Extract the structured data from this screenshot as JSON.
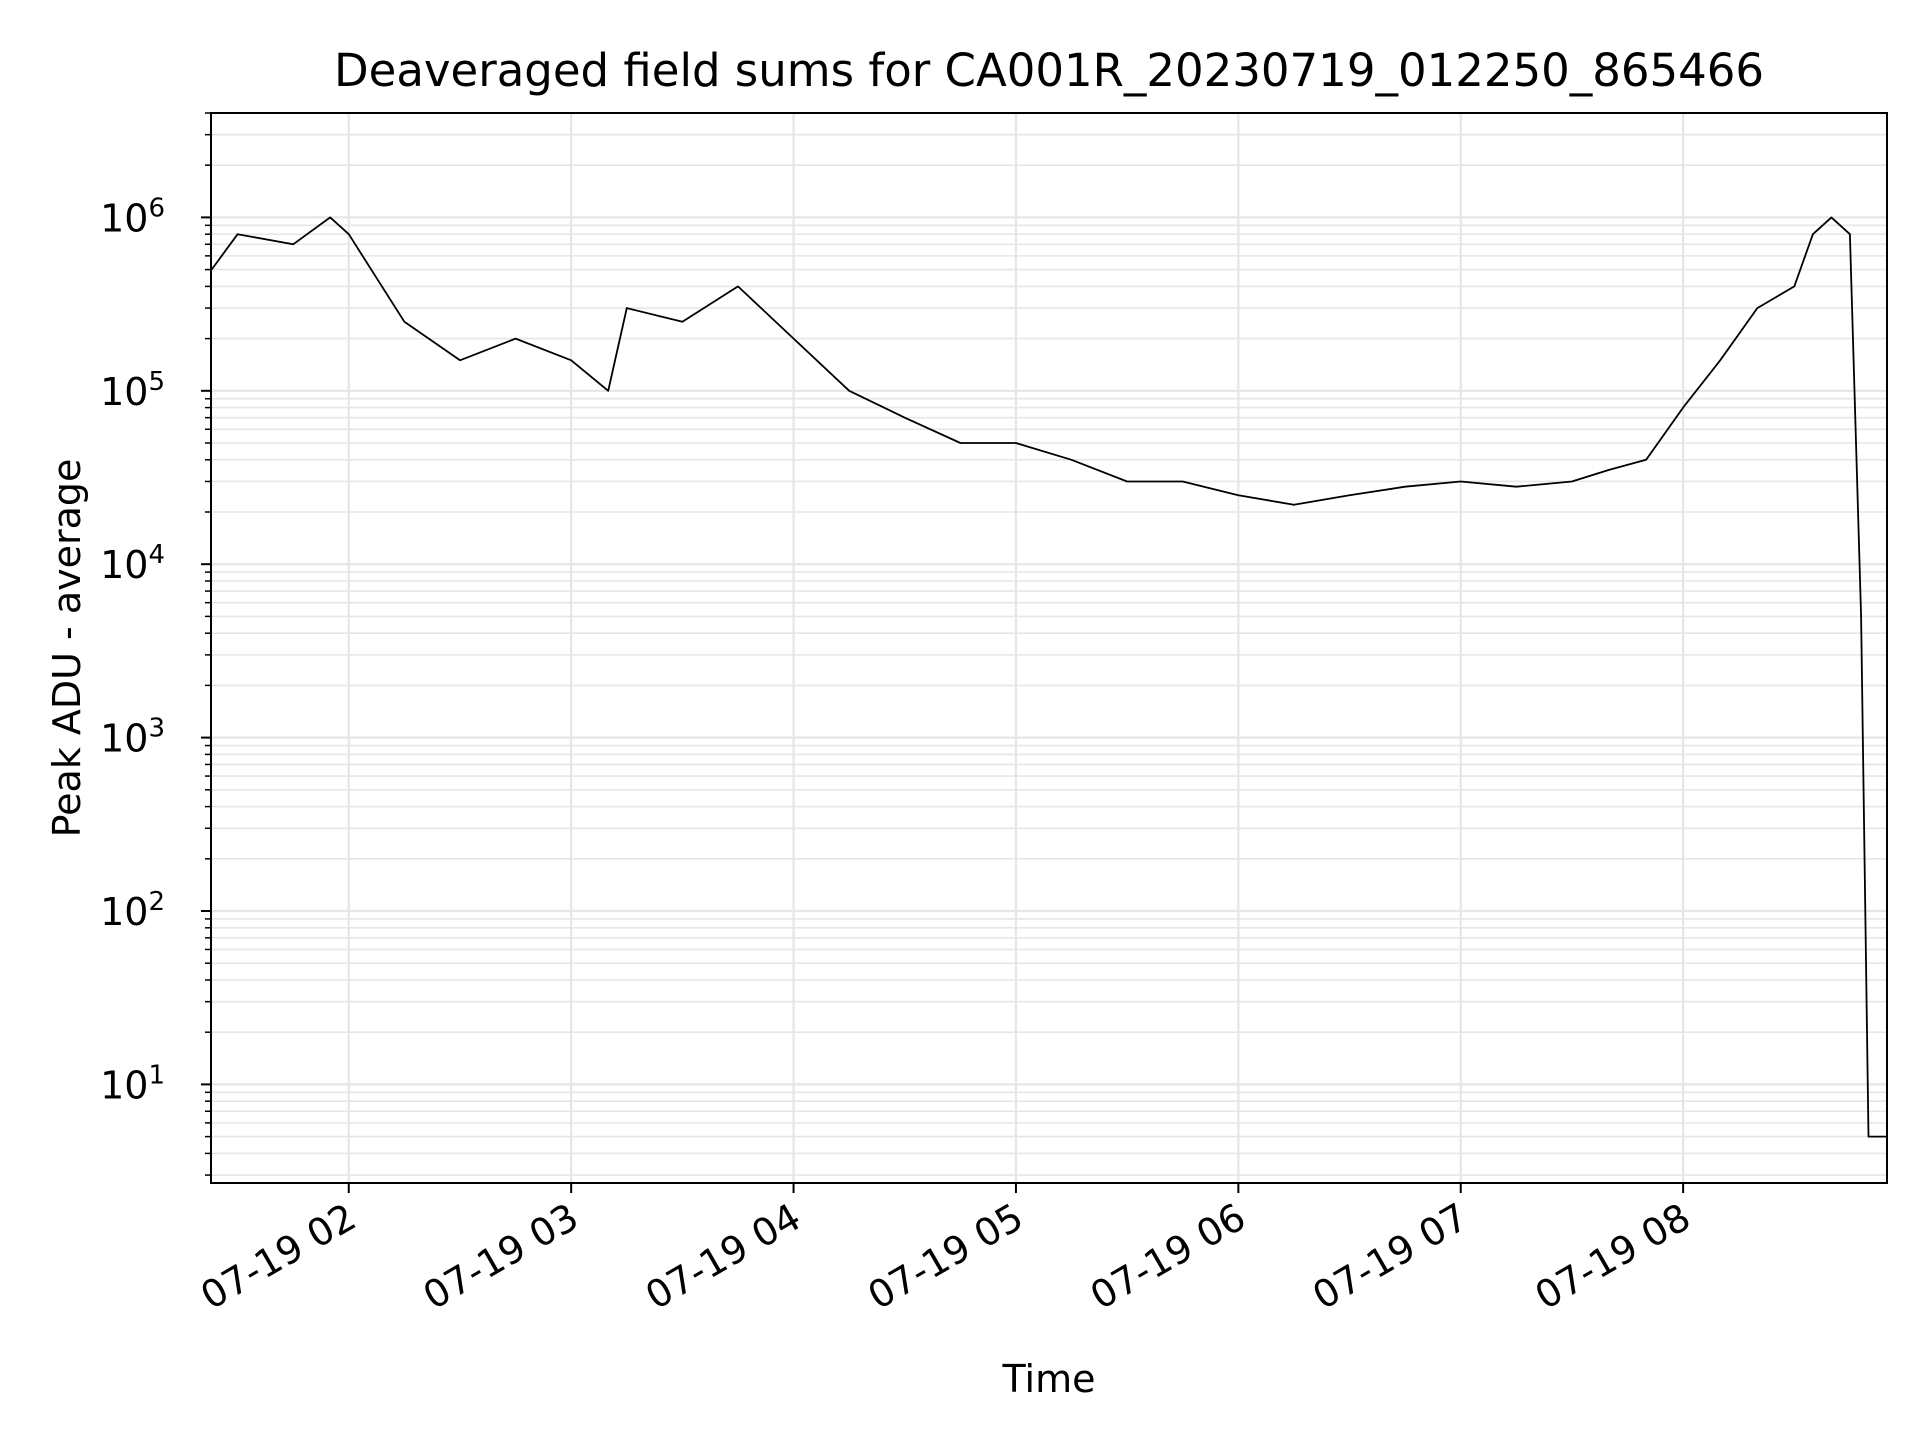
{
  "chart_data": {
    "type": "line",
    "title": "Deaveraged field sums for CA001R_20230719_012250_865466",
    "xlabel": "Time",
    "ylabel": "Peak ADU - average",
    "yscale": "log",
    "x_tick_labels": [
      "07-19 02",
      "07-19 03",
      "07-19 04",
      "07-19 05",
      "07-19 06",
      "07-19 07",
      "07-19 08"
    ],
    "y_tick_labels": [
      {
        "base": "10",
        "exp": "1"
      },
      {
        "base": "10",
        "exp": "2"
      },
      {
        "base": "10",
        "exp": "3"
      },
      {
        "base": "10",
        "exp": "4"
      },
      {
        "base": "10",
        "exp": "5"
      },
      {
        "base": "10",
        "exp": "6"
      }
    ],
    "xlim": [
      "2023-07-19 01:22:50",
      "2023-07-19 08:55"
    ],
    "ylim": [
      2.7,
      4000000
    ],
    "grid": true,
    "line_color": "#000000",
    "grid_color": "#e6e6e6",
    "series": [
      {
        "x": [
          "01:23",
          "01:30",
          "01:45",
          "01:55",
          "02:00",
          "02:15",
          "02:30",
          "02:45",
          "03:00",
          "03:10",
          "03:15",
          "03:30",
          "03:45",
          "04:00",
          "04:15",
          "04:30",
          "04:45",
          "05:00",
          "05:15",
          "05:30",
          "05:45",
          "06:00",
          "06:15",
          "06:30",
          "06:45",
          "07:00",
          "07:15",
          "07:30",
          "07:40",
          "07:50",
          "08:00",
          "08:10",
          "08:20",
          "08:30",
          "08:35",
          "08:40",
          "08:45",
          "08:48",
          "08:50",
          "08:52",
          "08:55"
        ],
        "y": [
          500000,
          800000,
          700000,
          1000000,
          800000,
          250000,
          150000,
          200000,
          150000,
          100000,
          300000,
          250000,
          400000,
          200000,
          100000,
          70000,
          50000,
          50000,
          40000,
          30000,
          30000,
          25000,
          22000,
          25000,
          28000,
          30000,
          28000,
          30000,
          35000,
          40000,
          80000,
          150000,
          300000,
          400000,
          800000,
          1000000,
          800000,
          5000,
          5,
          5,
          5
        ]
      }
    ]
  }
}
